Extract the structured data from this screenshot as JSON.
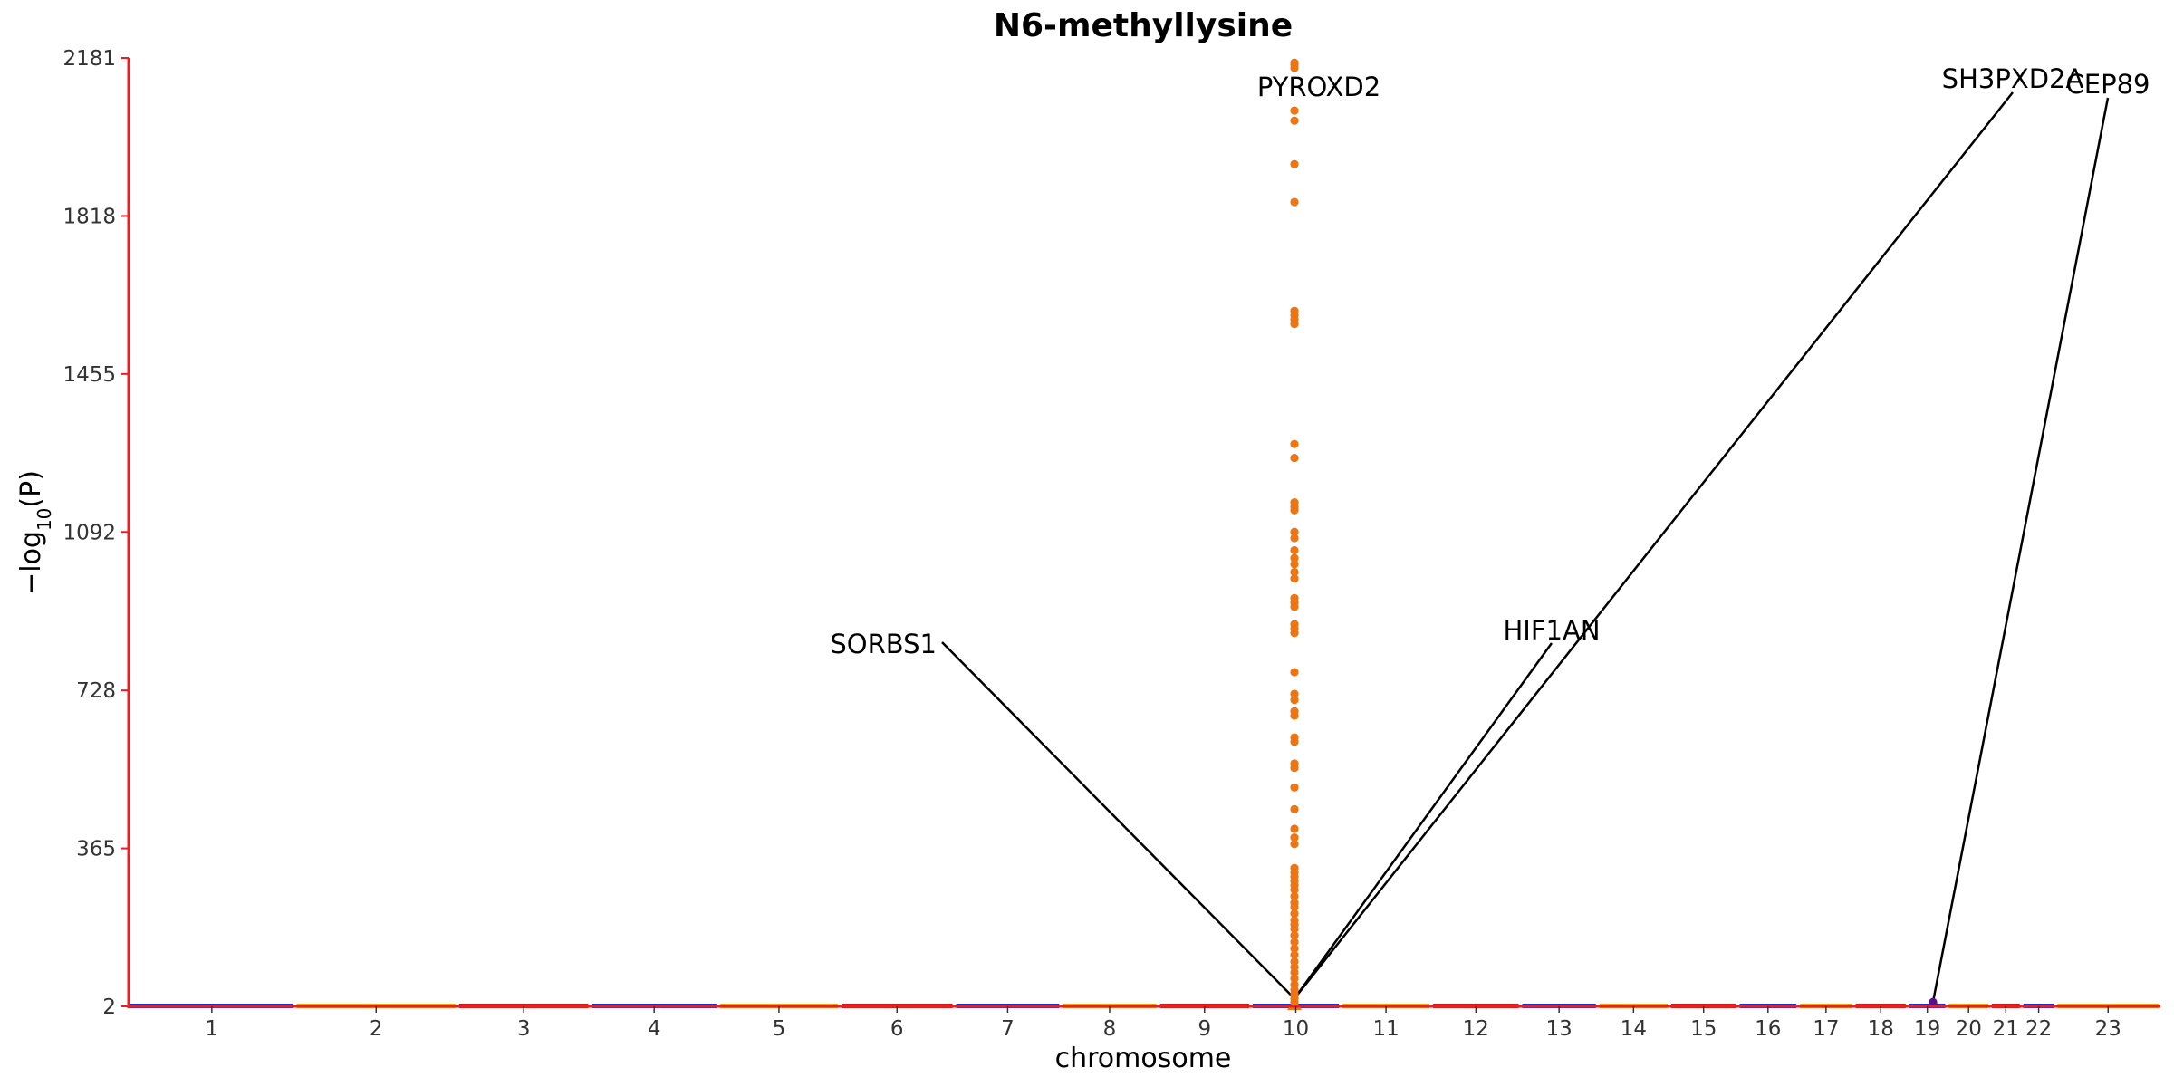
{
  "chart_data": {
    "type": "scatter",
    "title": "N6-methyllysine",
    "xlabel": "chromosome",
    "ylabel": "−log10(P)",
    "y_ticks": [
      2,
      365,
      728,
      1092,
      1455,
      1818,
      2181
    ],
    "ylim": [
      2,
      2181
    ],
    "chromosomes": [
      {
        "label": "1",
        "start": 0,
        "end": 248
      },
      {
        "label": "2",
        "start": 248,
        "end": 490
      },
      {
        "label": "3",
        "start": 490,
        "end": 688
      },
      {
        "label": "4",
        "start": 688,
        "end": 879
      },
      {
        "label": "5",
        "start": 879,
        "end": 1060
      },
      {
        "label": "6",
        "start": 1060,
        "end": 1231
      },
      {
        "label": "7",
        "start": 1231,
        "end": 1390
      },
      {
        "label": "8",
        "start": 1390,
        "end": 1535
      },
      {
        "label": "9",
        "start": 1535,
        "end": 1673
      },
      {
        "label": "10",
        "start": 1673,
        "end": 1807
      },
      {
        "label": "11",
        "start": 1807,
        "end": 1942
      },
      {
        "label": "12",
        "start": 1942,
        "end": 2075
      },
      {
        "label": "13",
        "start": 2075,
        "end": 2190
      },
      {
        "label": "14",
        "start": 2190,
        "end": 2297
      },
      {
        "label": "15",
        "start": 2297,
        "end": 2399
      },
      {
        "label": "16",
        "start": 2399,
        "end": 2489
      },
      {
        "label": "17",
        "start": 2489,
        "end": 2572
      },
      {
        "label": "18",
        "start": 2572,
        "end": 2652
      },
      {
        "label": "19",
        "start": 2652,
        "end": 2711
      },
      {
        "label": "20",
        "start": 2711,
        "end": 2775
      },
      {
        "label": "21",
        "start": 2775,
        "end": 2822
      },
      {
        "label": "22",
        "start": 2822,
        "end": 2873
      },
      {
        "label": "23",
        "start": 2873,
        "end": 3029
      }
    ],
    "baseline_colors": [
      "#1f2fd6",
      "#e8a317",
      "#d11a1a"
    ],
    "highlight_color": "#ee7512",
    "chr19_point_color": "#5b0f8a",
    "grid": false,
    "spine_color": "#e82020",
    "peak_chromosome": "10",
    "peak_points": [
      2158,
      2166,
      2170,
      2060,
      2037,
      1937,
      1850,
      1600,
      1590,
      1580,
      1570,
      1294,
      1262,
      1160,
      1150,
      1142,
      1092,
      1078,
      1050,
      1032,
      1018,
      1000,
      985,
      940,
      930,
      920,
      880,
      870,
      860,
      770,
      720,
      706,
      680,
      670,
      620,
      610,
      560,
      550,
      505,
      455,
      410,
      390,
      375,
      320,
      310,
      300,
      290,
      280,
      270,
      255,
      240,
      230,
      215,
      200,
      190,
      180,
      165,
      150,
      135,
      120,
      105,
      92,
      80,
      66,
      52,
      40,
      30,
      20,
      12
    ],
    "chr19_points": [
      12,
      10,
      8
    ],
    "annotations": [
      {
        "gene": "PYROXD2",
        "chromosome": "10",
        "y": 2120,
        "leader": false
      },
      {
        "gene": "SORBS1",
        "chromosome": "10",
        "y": 20,
        "leader": true
      },
      {
        "gene": "HIF1AN",
        "chromosome": "10",
        "y": 20,
        "leader": true
      },
      {
        "gene": "SH3PXD2A",
        "chromosome": "10",
        "y": 20,
        "leader": true
      },
      {
        "gene": "CEP89",
        "chromosome": "19",
        "y": 12,
        "leader": true
      }
    ]
  }
}
